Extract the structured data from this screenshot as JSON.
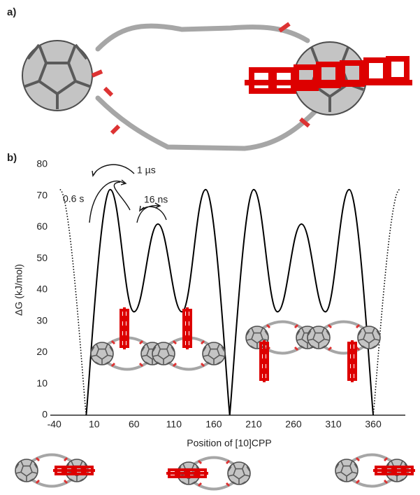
{
  "panel_labels": [
    "a)",
    "b)"
  ],
  "chart_data": {
    "type": "line",
    "ylabel": "ΔG (kJ/mol)",
    "xlabel": "Position of [10]CPP",
    "annotations": [
      "1 µs",
      "0.6 s",
      "16 ns"
    ],
    "xlim": [
      -45,
      395
    ],
    "xticks": [
      -40,
      10,
      60,
      110,
      160,
      210,
      260,
      310,
      360
    ],
    "ylim": [
      0,
      80
    ],
    "yticks": [
      0,
      10,
      20,
      30,
      40,
      50,
      60,
      70,
      80
    ],
    "grid": false,
    "series": [
      {
        "color": "#000000",
        "style": "solid",
        "x": [
          0,
          30,
          60,
          90,
          120,
          150,
          180,
          210,
          240,
          270,
          300,
          330,
          360
        ],
        "values": [
          0,
          72,
          33,
          61,
          33,
          72,
          0,
          72,
          33,
          61,
          33,
          72,
          0
        ]
      },
      {
        "color": "#000000",
        "style": "dotted",
        "x": [
          -33,
          0
        ],
        "values": [
          72,
          0
        ]
      },
      {
        "color": "#000000",
        "style": "dotted",
        "x": [
          360,
          393
        ],
        "values": [
          0,
          72
        ]
      }
    ]
  }
}
